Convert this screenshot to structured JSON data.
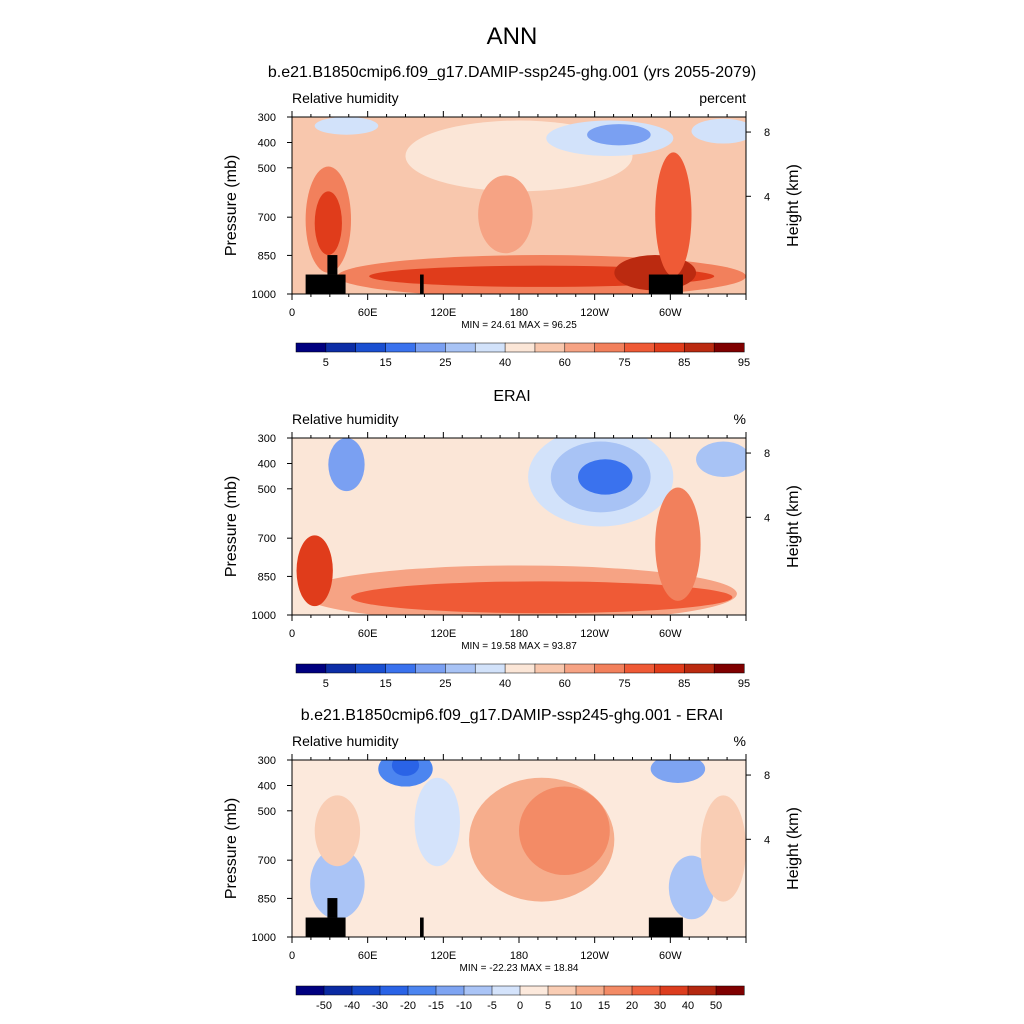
{
  "page": {
    "main_title": "ANN"
  },
  "chart_data": [
    {
      "type": "contour",
      "title": "b.e21.B1850cmip6.f09_g17.DAMIP-ssp245-ghg.001 (yrs 2055-2079)",
      "left_label": "Relative humidity",
      "right_label": "percent",
      "ylabel": "Pressure (mb)",
      "y2label": "Height (km)",
      "ylim": [
        1000,
        300
      ],
      "xlim": [
        0,
        360
      ],
      "yticks": [
        "300",
        "400",
        "500",
        "700",
        "850",
        "1000"
      ],
      "y2ticks": [
        "8",
        "4"
      ],
      "xticks": [
        "0",
        "60E",
        "120E",
        "180",
        "120W",
        "60W"
      ],
      "stats": "MIN = 24.61  MAX = 96.25",
      "colorbar_labels": [
        "5",
        "15",
        "25",
        "40",
        "60",
        "75",
        "85",
        "95"
      ],
      "colorbar_colors": [
        "#00007f",
        "#0c2da6",
        "#1a4fd1",
        "#3a72ee",
        "#7aa0f2",
        "#a8c3f5",
        "#d2e2fa",
        "#fbe6d7",
        "#f8c7ad",
        "#f6a384",
        "#f2805c",
        "#ef5a36",
        "#e03c1b",
        "#bb2a10",
        "#7f0000"
      ]
    },
    {
      "type": "contour",
      "title": "ERAI",
      "left_label": "Relative humidity",
      "right_label": "%",
      "ylabel": "Pressure (mb)",
      "y2label": "Height (km)",
      "ylim": [
        1000,
        300
      ],
      "xlim": [
        0,
        360
      ],
      "yticks": [
        "300",
        "400",
        "500",
        "700",
        "850",
        "1000"
      ],
      "y2ticks": [
        "8",
        "4"
      ],
      "xticks": [
        "0",
        "60E",
        "120E",
        "180",
        "120W",
        "60W"
      ],
      "stats": "MIN = 19.58  MAX = 93.87",
      "colorbar_labels": [
        "5",
        "15",
        "25",
        "40",
        "60",
        "75",
        "85",
        "95"
      ],
      "colorbar_colors": [
        "#00007f",
        "#0c2da6",
        "#1a4fd1",
        "#3a72ee",
        "#7aa0f2",
        "#a8c3f5",
        "#d2e2fa",
        "#fbe6d7",
        "#f8c7ad",
        "#f6a384",
        "#f2805c",
        "#ef5a36",
        "#e03c1b",
        "#bb2a10",
        "#7f0000"
      ]
    },
    {
      "type": "contour",
      "title": "b.e21.B1850cmip6.f09_g17.DAMIP-ssp245-ghg.001 - ERAI",
      "left_label": "Relative humidity",
      "right_label": "%",
      "ylabel": "Pressure (mb)",
      "y2label": "Height (km)",
      "ylim": [
        1000,
        300
      ],
      "xlim": [
        0,
        360
      ],
      "yticks": [
        "300",
        "400",
        "500",
        "700",
        "850",
        "1000"
      ],
      "y2ticks": [
        "8",
        "4"
      ],
      "xticks": [
        "0",
        "60E",
        "120E",
        "180",
        "120W",
        "60W"
      ],
      "stats": "MIN = -22.23  MAX = 18.84",
      "colorbar_labels": [
        "-50",
        "-40",
        "-30",
        "-20",
        "-15",
        "-10",
        "-5",
        "0",
        "5",
        "10",
        "15",
        "20",
        "30",
        "40",
        "50"
      ],
      "colorbar_colors": [
        "#00007f",
        "#0a2aa2",
        "#1547c8",
        "#2a63e6",
        "#4c85f0",
        "#7ea4f2",
        "#aac4f6",
        "#d4e3fb",
        "#fce9dc",
        "#f9cdb4",
        "#f6ad8c",
        "#f38b66",
        "#ee6440",
        "#dc3d1e",
        "#b42810",
        "#7f0000"
      ]
    }
  ]
}
